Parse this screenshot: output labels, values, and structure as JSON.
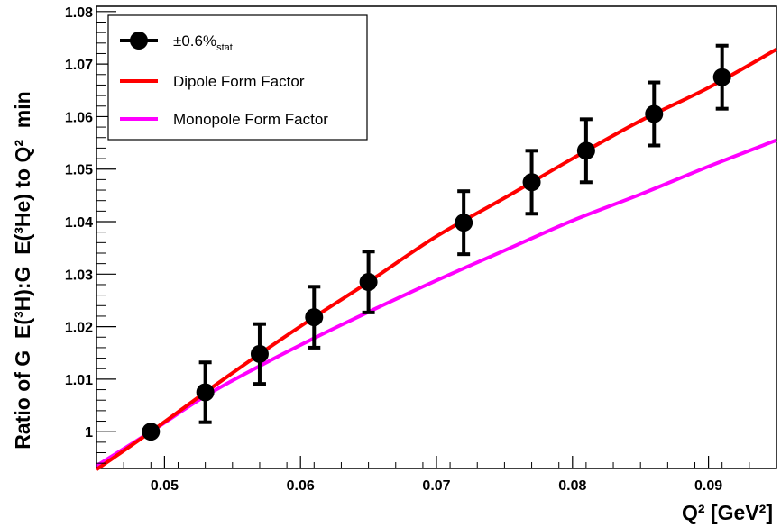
{
  "chart_data": {
    "type": "line",
    "title": "",
    "xlabel": "Q² [GeV²]",
    "ylabel": "Ratio of G_E(³H):G_E(³He) to Q²_min",
    "xlim": [
      0.045,
      0.095
    ],
    "ylim": [
      0.993,
      1.081
    ],
    "x_ticks": [
      0.05,
      0.06,
      0.07,
      0.08,
      0.09
    ],
    "x_tick_labels": [
      "0.05",
      "0.06",
      "0.07",
      "0.08",
      "0.09"
    ],
    "y_ticks": [
      1.0,
      1.01,
      1.02,
      1.03,
      1.04,
      1.05,
      1.06,
      1.07,
      1.08
    ],
    "y_tick_labels": [
      "1",
      "1.01",
      "1.02",
      "1.03",
      "1.04",
      "1.05",
      "1.06",
      "1.07",
      "1.08"
    ],
    "grid": false,
    "legend_position": "top-left",
    "series": [
      {
        "name": "±0.6%stat",
        "type": "scatter",
        "color": "#000000",
        "x": [
          0.049,
          0.053,
          0.057,
          0.061,
          0.065,
          0.072,
          0.077,
          0.081,
          0.086,
          0.091
        ],
        "y": [
          1.0,
          1.0075,
          1.0148,
          1.0218,
          1.0285,
          1.0398,
          1.0475,
          1.0535,
          1.0605,
          1.0675
        ],
        "error": [
          0,
          0.0057,
          0.0057,
          0.0058,
          0.0058,
          0.006,
          0.006,
          0.006,
          0.006,
          0.006
        ]
      },
      {
        "name": "Dipole Form Factor",
        "type": "line",
        "color": "#ff0000",
        "x": [
          0.045,
          0.049,
          0.053,
          0.057,
          0.061,
          0.065,
          0.07,
          0.075,
          0.08,
          0.085,
          0.09,
          0.095
        ],
        "y": [
          0.9928,
          1.0,
          1.0075,
          1.0148,
          1.0218,
          1.0285,
          1.0372,
          1.0445,
          1.052,
          1.0592,
          1.0655,
          1.0728
        ]
      },
      {
        "name": "Monopole Form Factor",
        "type": "line",
        "color": "#ff00ff",
        "x": [
          0.045,
          0.049,
          0.053,
          0.057,
          0.061,
          0.065,
          0.07,
          0.075,
          0.08,
          0.085,
          0.09,
          0.095
        ],
        "y": [
          0.9935,
          1.0,
          1.0068,
          1.0125,
          1.0178,
          1.0228,
          1.0288,
          1.0345,
          1.0402,
          1.0452,
          1.0505,
          1.0555
        ]
      }
    ],
    "legend": {
      "entries": [
        {
          "label": "±0.6%",
          "sub": "stat",
          "series": 0
        },
        {
          "label": "Dipole Form Factor",
          "series": 1
        },
        {
          "label": "Monopole Form Factor",
          "series": 2
        }
      ]
    }
  }
}
